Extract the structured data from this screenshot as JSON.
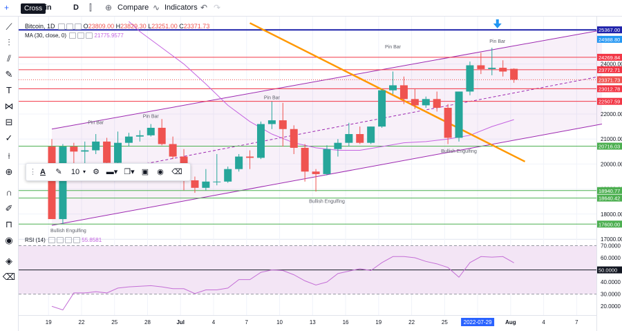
{
  "toolbar": {
    "symbol": "coin",
    "interval": "D",
    "compare": "Compare",
    "indicators": "Indicators",
    "tooltip": "Cross"
  },
  "legend": {
    "title": "Bitcoin, 1D",
    "ohlc": {
      "o_label": "O",
      "o": "23809.00",
      "h_label": "H",
      "h": "23829.30",
      "l_label": "L",
      "l": "23251.00",
      "c_label": "C",
      "c": "23371.73"
    },
    "ma_label": "MA (30, close, 0)",
    "ma_value": "21775.9577",
    "rsi_label": "RSI (14)",
    "rsi_value": "55.8581"
  },
  "float_toolbar": {
    "font_size": "10"
  },
  "colors": {
    "up": "#26a69a",
    "down": "#ef5350",
    "ma": "#c462e0",
    "channel": "#9c27b0",
    "trend": "#ff9800",
    "resistance_red": "#f23645",
    "support_green": "#4caf50",
    "top_line": "#1e22aa",
    "arrow": "#2196f3",
    "rsi_line": "#c46fd6",
    "rsi_fill": "#f3e5f5"
  },
  "chart_data": [
    {
      "type": "candlestick",
      "title": "Bitcoin, 1D",
      "ylim": [
        17000,
        25400
      ],
      "yticks": [
        17000,
        18000,
        19000,
        20000,
        21000,
        22000,
        23000,
        24000
      ],
      "xtick_labels": [
        "19",
        "22",
        "25",
        "28",
        "Jul",
        "4",
        "7",
        "10",
        "13",
        "16",
        "19",
        "22",
        "25",
        "2022-07-29",
        "Aug",
        "4",
        "7"
      ],
      "candles": [
        {
          "o": 20700,
          "h": 21000,
          "l": 17800,
          "c": 17800
        },
        {
          "o": 17800,
          "h": 20800,
          "l": 17600,
          "c": 20700
        },
        {
          "o": 20700,
          "h": 20850,
          "l": 19900,
          "c": 20500
        },
        {
          "o": 20500,
          "h": 20900,
          "l": 19950,
          "c": 20550
        },
        {
          "o": 20550,
          "h": 21200,
          "l": 20400,
          "c": 20900
        },
        {
          "o": 20900,
          "h": 21050,
          "l": 20000,
          "c": 20050
        },
        {
          "o": 20050,
          "h": 21300,
          "l": 20000,
          "c": 20850
        },
        {
          "o": 20850,
          "h": 21250,
          "l": 20700,
          "c": 21100
        },
        {
          "o": 21100,
          "h": 21350,
          "l": 20900,
          "c": 21150
        },
        {
          "o": 21150,
          "h": 21600,
          "l": 21100,
          "c": 21450
        },
        {
          "o": 21450,
          "h": 21800,
          "l": 20750,
          "c": 20800
        },
        {
          "o": 20800,
          "h": 21100,
          "l": 20200,
          "c": 20300
        },
        {
          "o": 20300,
          "h": 20600,
          "l": 18950,
          "c": 19350
        },
        {
          "o": 19350,
          "h": 19500,
          "l": 18850,
          "c": 19050
        },
        {
          "o": 19050,
          "h": 19800,
          "l": 18950,
          "c": 19300
        },
        {
          "o": 19300,
          "h": 20400,
          "l": 19150,
          "c": 19300
        },
        {
          "o": 19300,
          "h": 19900,
          "l": 19250,
          "c": 19800
        },
        {
          "o": 19800,
          "h": 20400,
          "l": 19700,
          "c": 20300
        },
        {
          "o": 20300,
          "h": 20550,
          "l": 19800,
          "c": 20250
        },
        {
          "o": 20250,
          "h": 21700,
          "l": 20200,
          "c": 21600
        },
        {
          "o": 21600,
          "h": 22500,
          "l": 21400,
          "c": 21750
        },
        {
          "o": 21750,
          "h": 22450,
          "l": 20700,
          "c": 21400
        },
        {
          "o": 21400,
          "h": 21550,
          "l": 20400,
          "c": 20650
        },
        {
          "o": 20650,
          "h": 20800,
          "l": 19300,
          "c": 19700
        },
        {
          "o": 19700,
          "h": 19800,
          "l": 18900,
          "c": 19600
        },
        {
          "o": 19600,
          "h": 20750,
          "l": 19550,
          "c": 20600
        },
        {
          "o": 20600,
          "h": 21000,
          "l": 20300,
          "c": 20850
        },
        {
          "o": 20850,
          "h": 21650,
          "l": 20700,
          "c": 21200
        },
        {
          "o": 21200,
          "h": 21500,
          "l": 20800,
          "c": 20850
        },
        {
          "o": 20850,
          "h": 21500,
          "l": 20800,
          "c": 21500
        },
        {
          "o": 21500,
          "h": 23000,
          "l": 21450,
          "c": 22950
        },
        {
          "o": 22950,
          "h": 23700,
          "l": 22800,
          "c": 23150
        },
        {
          "o": 23150,
          "h": 23500,
          "l": 22400,
          "c": 22600
        },
        {
          "o": 22600,
          "h": 23000,
          "l": 22200,
          "c": 22350
        },
        {
          "o": 22350,
          "h": 22700,
          "l": 22250,
          "c": 22600
        },
        {
          "o": 22600,
          "h": 22900,
          "l": 22100,
          "c": 22250
        },
        {
          "o": 22250,
          "h": 22400,
          "l": 20800,
          "c": 21050
        },
        {
          "o": 21050,
          "h": 22900,
          "l": 20900,
          "c": 22900
        },
        {
          "o": 22900,
          "h": 24100,
          "l": 22750,
          "c": 23950
        },
        {
          "o": 23950,
          "h": 24450,
          "l": 23600,
          "c": 23800
        },
        {
          "o": 23800,
          "h": 24650,
          "l": 23550,
          "c": 23850
        },
        {
          "o": 23850,
          "h": 24150,
          "l": 23500,
          "c": 23700
        },
        {
          "o": 23809,
          "h": 23829.3,
          "l": 23251,
          "c": 23371.73
        }
      ],
      "moving_average": {
        "name": "MA (30, close, 0)",
        "points": [
          {
            "i": 7,
            "v": 25700
          },
          {
            "i": 8,
            "v": 25300
          },
          {
            "i": 10,
            "v": 24650
          },
          {
            "i": 12,
            "v": 24000
          },
          {
            "i": 14,
            "v": 23200
          },
          {
            "i": 16,
            "v": 22350
          },
          {
            "i": 18,
            "v": 21700
          },
          {
            "i": 20,
            "v": 21200
          },
          {
            "i": 22,
            "v": 20850
          },
          {
            "i": 24,
            "v": 20650
          },
          {
            "i": 26,
            "v": 20550
          },
          {
            "i": 28,
            "v": 20550
          },
          {
            "i": 30,
            "v": 20700
          },
          {
            "i": 32,
            "v": 20850
          },
          {
            "i": 34,
            "v": 20900
          },
          {
            "i": 36,
            "v": 21000
          },
          {
            "i": 38,
            "v": 21150
          },
          {
            "i": 40,
            "v": 21500
          },
          {
            "i": 42,
            "v": 21775.9577
          }
        ]
      },
      "price_levels": [
        {
          "value": 25367.0,
          "label": "25367.00",
          "color": "#1e22aa"
        },
        {
          "value": 24269.84,
          "label": "24269.84",
          "color": "#f23645"
        },
        {
          "value": 23772.71,
          "label": "23772.71",
          "color": "#f23645"
        },
        {
          "value": 23012.78,
          "label": "23012.78",
          "color": "#f23645"
        },
        {
          "value": 22507.59,
          "label": "22507.59",
          "color": "#f23645"
        },
        {
          "value": 20716.03,
          "label": "20716.03",
          "color": "#4caf50"
        },
        {
          "value": 18940.77,
          "label": "18940.77",
          "color": "#4caf50"
        },
        {
          "value": 18640.42,
          "label": "18640.42",
          "color": "#4caf50"
        },
        {
          "value": 17600.0,
          "label": "17600.00",
          "color": "#4caf50"
        }
      ],
      "axis_highlights": [
        {
          "value": 24988.8,
          "label": "24988.80",
          "color": "#2196f3"
        },
        {
          "value": 23371.73,
          "label": "23371.73",
          "color": "#ef5350"
        }
      ],
      "channel": {
        "upper": [
          {
            "i": 0,
            "v": 21400
          },
          {
            "i": 50,
            "v": 25360
          }
        ],
        "lower": [
          {
            "i": 0,
            "v": 17550
          },
          {
            "i": 50,
            "v": 21600
          }
        ],
        "middle": [
          {
            "i": 6,
            "v": 19800
          },
          {
            "i": 50,
            "v": 23520
          }
        ]
      },
      "trendline": [
        {
          "i": 18,
          "v": 25640
        },
        {
          "i": 43,
          "v": 20100
        }
      ],
      "annotations": [
        {
          "text": "Pin Bar",
          "i": 4.0,
          "v": 21600
        },
        {
          "text": "Pin Bar",
          "i": 9.0,
          "v": 21850
        },
        {
          "text": "Pin Bar",
          "i": 20.0,
          "v": 22600
        },
        {
          "text": "Pin Bar",
          "i": 31.0,
          "v": 24630
        },
        {
          "text": "Pin Bar",
          "i": 40.5,
          "v": 24850
        },
        {
          "text": "Bullish Engulfing",
          "i": 1.5,
          "v": 17270
        },
        {
          "text": "Bullish Engulfing",
          "i": 25.0,
          "v": 18450
        },
        {
          "text": "Bullish Engulfing",
          "i": 37.0,
          "v": 20450
        }
      ],
      "marker": {
        "type": "arrow-down",
        "i": 40.5
      }
    },
    {
      "type": "line",
      "title": "RSI (14)",
      "ylim": [
        15,
        72
      ],
      "yticks": [
        20,
        30,
        40,
        50,
        60,
        70
      ],
      "levels": [
        70,
        50,
        30
      ],
      "level_labels": {
        "50": "50.0000"
      },
      "values": [
        20,
        17,
        31,
        31,
        32,
        31,
        35,
        36,
        36.5,
        37,
        36,
        34.5,
        34.5,
        30.5,
        33.5,
        33.5,
        35,
        42,
        42,
        48,
        50,
        49.5,
        46,
        41,
        37.5,
        40,
        47,
        49,
        51,
        49.5,
        56,
        61,
        61,
        60,
        57,
        55,
        52,
        44,
        56,
        61,
        60.5,
        61,
        55.8581
      ]
    }
  ]
}
